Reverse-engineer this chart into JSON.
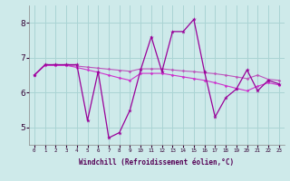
{
  "xlabel": "Windchill (Refroidissement éolien,°C)",
  "hours": [
    0,
    1,
    2,
    3,
    4,
    5,
    6,
    7,
    8,
    9,
    10,
    11,
    12,
    13,
    14,
    15,
    16,
    17,
    18,
    19,
    20,
    21,
    22,
    23
  ],
  "line1": [
    6.5,
    6.8,
    6.8,
    6.8,
    6.8,
    5.2,
    6.6,
    4.7,
    4.85,
    5.5,
    6.65,
    7.6,
    6.6,
    7.75,
    7.75,
    8.1,
    6.6,
    5.3,
    5.85,
    6.1,
    6.65,
    6.05,
    6.35,
    6.25
  ],
  "line2": [
    6.5,
    6.78,
    6.78,
    6.78,
    6.76,
    6.73,
    6.7,
    6.67,
    6.64,
    6.61,
    6.68,
    6.68,
    6.68,
    6.65,
    6.62,
    6.6,
    6.57,
    6.54,
    6.5,
    6.45,
    6.4,
    6.5,
    6.38,
    6.35
  ],
  "line3": [
    6.5,
    6.78,
    6.78,
    6.78,
    6.72,
    6.65,
    6.58,
    6.5,
    6.42,
    6.35,
    6.55,
    6.55,
    6.55,
    6.5,
    6.45,
    6.4,
    6.35,
    6.28,
    6.2,
    6.12,
    6.05,
    6.18,
    6.28,
    6.22
  ],
  "color1": "#990099",
  "color2": "#bb55bb",
  "color3": "#cc33cc",
  "bg_color": "#ceeaea",
  "grid_color": "#aad4d4",
  "ylim": [
    4.5,
    8.5
  ],
  "yticks": [
    5,
    6,
    7,
    8
  ],
  "xticks": [
    0,
    1,
    2,
    3,
    4,
    5,
    6,
    7,
    8,
    9,
    10,
    11,
    12,
    13,
    14,
    15,
    16,
    17,
    18,
    19,
    20,
    21,
    22,
    23
  ]
}
